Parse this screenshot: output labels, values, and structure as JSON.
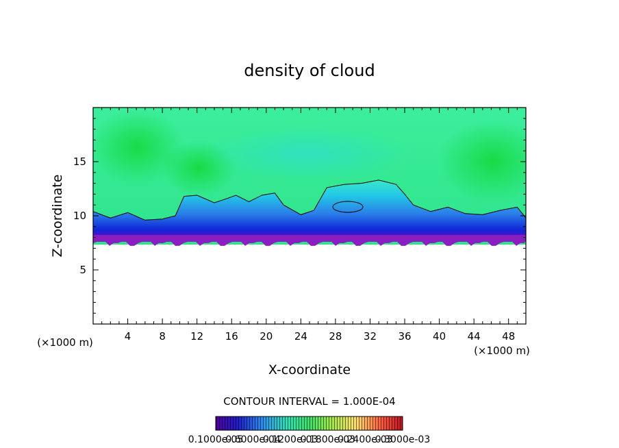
{
  "chart_data": {
    "type": "heatmap",
    "title": "density of cloud",
    "xlabel": "X-coordinate",
    "ylabel": "Z-coordinate",
    "x_unit": "(×1000 m)",
    "x_unit_right": "(×1000 m)",
    "xlim": [
      0,
      50
    ],
    "ylim": [
      0,
      20
    ],
    "xticks": [
      4,
      8,
      12,
      16,
      20,
      24,
      28,
      32,
      36,
      40,
      44,
      48
    ],
    "yticks": [
      5,
      10,
      15
    ],
    "contour_interval_label": "CONTOUR INTERVAL = 1.000E-04",
    "colorbar_labels": [
      "0.1000e-05",
      "0.6000e-04",
      "0.1200e-03",
      "0.1800e-03",
      "0.2400e-03",
      "0.3000e-03"
    ],
    "colorbar_colors": [
      "#5000a0",
      "#1e1ecc",
      "#2d8ef0",
      "#2fe0b6",
      "#3ce06a",
      "#a4e84a",
      "#ffe070",
      "#ff6040",
      "#c01020"
    ],
    "field_colors": {
      "upper": "#44ee99",
      "upper_dense": "#22dd55",
      "mid": "#22ccdd",
      "low": "#0044dd",
      "base": "#7a1fbf"
    },
    "cloud_top_profile": {
      "x": [
        0,
        2,
        4,
        6,
        8,
        9.5,
        10.5,
        12,
        14,
        15.5,
        16.5,
        18,
        19.5,
        21,
        22,
        24,
        25.5,
        27,
        29,
        31,
        33,
        35,
        36,
        37,
        39,
        41,
        43,
        45,
        47,
        49,
        50
      ],
      "z": [
        10.4,
        9.8,
        10.3,
        9.6,
        9.7,
        10.0,
        11.8,
        11.9,
        11.2,
        11.6,
        11.9,
        11.3,
        11.9,
        12.1,
        11.0,
        10.1,
        10.5,
        12.6,
        12.9,
        13.0,
        13.3,
        12.9,
        12.0,
        11.0,
        10.4,
        10.8,
        10.2,
        10.1,
        10.5,
        10.8,
        9.8
      ]
    },
    "cloud_base_z": 7.6
  }
}
